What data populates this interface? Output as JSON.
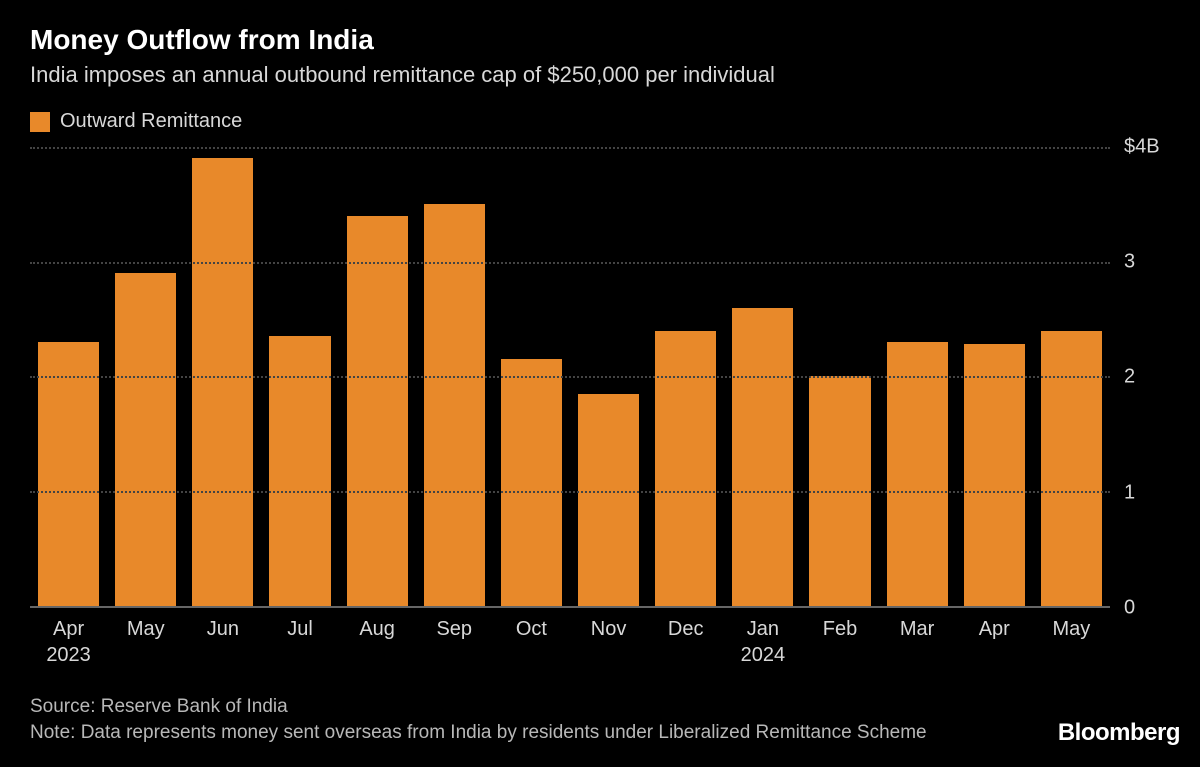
{
  "title": "Money Outflow from India",
  "subtitle": "India imposes an annual outbound remittance cap of $250,000 per individual",
  "legend": {
    "label": "Outward Remittance",
    "color": "#e8892a"
  },
  "chart": {
    "type": "bar",
    "bar_color": "#e8892a",
    "background_color": "#000000",
    "grid_color": "#444444",
    "axis_text_color": "#d8d8d8",
    "ylim": [
      0,
      4
    ],
    "yticks": [
      {
        "value": 0,
        "label": "0"
      },
      {
        "value": 1,
        "label": "1"
      },
      {
        "value": 2,
        "label": "2"
      },
      {
        "value": 3,
        "label": "3"
      },
      {
        "value": 4,
        "label": "$4B"
      }
    ],
    "categories": [
      {
        "label": "Apr",
        "year": "2023"
      },
      {
        "label": "May",
        "year": ""
      },
      {
        "label": "Jun",
        "year": ""
      },
      {
        "label": "Jul",
        "year": ""
      },
      {
        "label": "Aug",
        "year": ""
      },
      {
        "label": "Sep",
        "year": ""
      },
      {
        "label": "Oct",
        "year": ""
      },
      {
        "label": "Nov",
        "year": ""
      },
      {
        "label": "Dec",
        "year": ""
      },
      {
        "label": "Jan",
        "year": "2024"
      },
      {
        "label": "Feb",
        "year": ""
      },
      {
        "label": "Mar",
        "year": ""
      },
      {
        "label": "Apr",
        "year": ""
      },
      {
        "label": "May",
        "year": ""
      }
    ],
    "values": [
      2.3,
      2.9,
      3.9,
      2.35,
      3.4,
      3.5,
      2.15,
      1.85,
      2.4,
      2.6,
      2.0,
      2.3,
      2.28,
      2.4
    ],
    "label_fontsize": 20,
    "title_fontsize": 28
  },
  "footer": {
    "source": "Source: Reserve Bank of India",
    "note": "Note: Data represents money sent overseas from India by residents under Liberalized Remittance Scheme"
  },
  "brand": "Bloomberg"
}
